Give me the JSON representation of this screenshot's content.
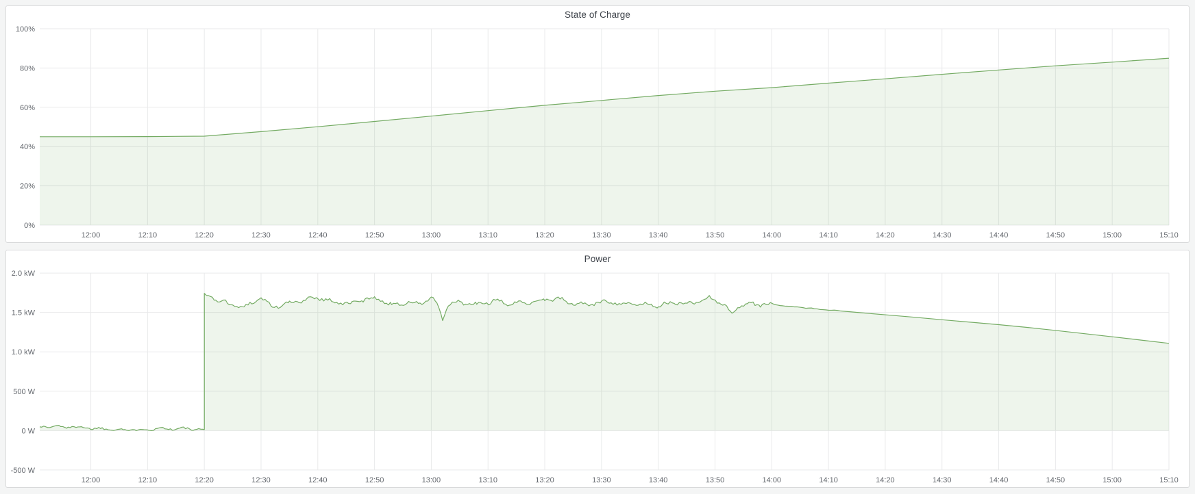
{
  "colors": {
    "page_background": "#f4f5f5",
    "panel_background": "#ffffff",
    "panel_border": "#d8d9da",
    "grid": "#e9eaeb",
    "axis_text": "#63676d",
    "title_text": "#3e434a",
    "series_green_line": "#74ab63",
    "series_green_fill": "rgba(116,171,99,0.12)"
  },
  "chart_data": [
    {
      "type": "area",
      "title": "State of Charge",
      "xlabel": "",
      "ylabel": "",
      "x_start": "11:51",
      "x_end": "15:10",
      "x_ticks": [
        "12:00",
        "12:10",
        "12:20",
        "12:30",
        "12:40",
        "12:50",
        "13:00",
        "13:10",
        "13:20",
        "13:30",
        "13:40",
        "13:50",
        "14:00",
        "14:10",
        "14:20",
        "14:30",
        "14:40",
        "14:50",
        "15:00",
        "15:10"
      ],
      "ylim": [
        0,
        100
      ],
      "y_ticks": [
        {
          "v": 0,
          "label": "0%"
        },
        {
          "v": 20,
          "label": "20%"
        },
        {
          "v": 40,
          "label": "40%"
        },
        {
          "v": 60,
          "label": "60%"
        },
        {
          "v": 80,
          "label": "80%"
        },
        {
          "v": 100,
          "label": "100%"
        }
      ],
      "grid": true,
      "legend": "none",
      "line_color": "#74ab63",
      "fill_color": "rgba(116,171,99,0.12)",
      "fill_to": 0,
      "series": [
        {
          "name": "State of Charge (%)",
          "points": [
            [
              "11:51",
              45.0
            ],
            [
              "12:00",
              45.0
            ],
            [
              "12:10",
              45.1
            ],
            [
              "12:20",
              45.3
            ],
            [
              "12:30",
              47.6
            ],
            [
              "12:40",
              50.1
            ],
            [
              "12:50",
              52.8
            ],
            [
              "13:00",
              55.5
            ],
            [
              "13:10",
              58.3
            ],
            [
              "13:20",
              61.0
            ],
            [
              "13:30",
              63.5
            ],
            [
              "13:40",
              66.0
            ],
            [
              "13:50",
              68.2
            ],
            [
              "14:00",
              70.0
            ],
            [
              "14:10",
              72.3
            ],
            [
              "14:20",
              74.5
            ],
            [
              "14:30",
              76.8
            ],
            [
              "14:40",
              79.0
            ],
            [
              "14:50",
              81.1
            ],
            [
              "15:00",
              83.0
            ],
            [
              "15:10",
              85.0
            ]
          ],
          "noise_segments": []
        }
      ]
    },
    {
      "type": "area",
      "title": "Power",
      "xlabel": "",
      "ylabel": "",
      "x_start": "11:51",
      "x_end": "15:10",
      "x_ticks": [
        "12:00",
        "12:10",
        "12:20",
        "12:30",
        "12:40",
        "12:50",
        "13:00",
        "13:10",
        "13:20",
        "13:30",
        "13:40",
        "13:50",
        "14:00",
        "14:10",
        "14:20",
        "14:30",
        "14:40",
        "14:50",
        "15:00",
        "15:10"
      ],
      "ylim": [
        -500,
        2000
      ],
      "y_ticks": [
        {
          "v": -500,
          "label": "-500 W"
        },
        {
          "v": 0,
          "label": "0 W"
        },
        {
          "v": 500,
          "label": "500 W"
        },
        {
          "v": 1000,
          "label": "1.0 kW"
        },
        {
          "v": 1500,
          "label": "1.5 kW"
        },
        {
          "v": 2000,
          "label": "2.0 kW"
        }
      ],
      "grid": true,
      "legend": "none",
      "line_color": "#74ab63",
      "fill_color": "rgba(116,171,99,0.12)",
      "fill_to": 0,
      "series": [
        {
          "name": "Power (W)",
          "points": [
            [
              "11:51",
              55
            ],
            [
              "11:52",
              62
            ],
            [
              "11:53",
              55
            ],
            [
              "11:54",
              58
            ],
            [
              "11:56",
              45
            ],
            [
              "11:58",
              38
            ],
            [
              "12:00",
              25
            ],
            [
              "12:02",
              18
            ],
            [
              "12:04",
              24
            ],
            [
              "12:06",
              14
            ],
            [
              "12:08",
              20
            ],
            [
              "12:10",
              16
            ],
            [
              "12:12",
              26
            ],
            [
              "12:14",
              14
            ],
            [
              "12:16",
              22
            ],
            [
              "12:18",
              14
            ],
            [
              "12:19",
              18
            ],
            [
              "12:20",
              8
            ],
            [
              "12:20",
              1740
            ],
            [
              "12:22",
              1680
            ],
            [
              "12:25",
              1600
            ],
            [
              "12:27",
              1560
            ],
            [
              "12:30",
              1680
            ],
            [
              "12:32",
              1560
            ],
            [
              "12:35",
              1620
            ],
            [
              "12:38",
              1680
            ],
            [
              "12:40",
              1700
            ],
            [
              "12:43",
              1620
            ],
            [
              "12:46",
              1600
            ],
            [
              "12:48",
              1660
            ],
            [
              "12:50",
              1690
            ],
            [
              "12:53",
              1610
            ],
            [
              "12:56",
              1630
            ],
            [
              "12:58",
              1600
            ],
            [
              "13:00",
              1680
            ],
            [
              "13:01",
              1600
            ],
            [
              "13:02",
              1390
            ],
            [
              "13:03",
              1600
            ],
            [
              "13:05",
              1630
            ],
            [
              "13:08",
              1610
            ],
            [
              "13:11",
              1650
            ],
            [
              "13:14",
              1600
            ],
            [
              "13:17",
              1620
            ],
            [
              "13:20",
              1660
            ],
            [
              "13:22",
              1690
            ],
            [
              "13:25",
              1620
            ],
            [
              "13:28",
              1600
            ],
            [
              "13:31",
              1630
            ],
            [
              "13:34",
              1600
            ],
            [
              "13:37",
              1615
            ],
            [
              "13:40",
              1600
            ],
            [
              "13:43",
              1620
            ],
            [
              "13:46",
              1605
            ],
            [
              "13:49",
              1680
            ],
            [
              "13:51",
              1640
            ],
            [
              "13:53",
              1490
            ],
            [
              "13:54",
              1590
            ],
            [
              "13:56",
              1620
            ],
            [
              "13:58",
              1600
            ],
            [
              "14:00",
              1600
            ],
            [
              "14:02",
              1582
            ],
            [
              "14:05",
              1565
            ],
            [
              "14:08",
              1545
            ],
            [
              "14:12",
              1520
            ],
            [
              "14:16",
              1495
            ],
            [
              "14:20",
              1470
            ],
            [
              "14:25",
              1440
            ],
            [
              "14:30",
              1408
            ],
            [
              "14:35",
              1376
            ],
            [
              "14:40",
              1345
            ],
            [
              "14:45",
              1310
            ],
            [
              "14:50",
              1272
            ],
            [
              "14:55",
              1232
            ],
            [
              "15:00",
              1192
            ],
            [
              "15:05",
              1150
            ],
            [
              "15:10",
              1108
            ]
          ],
          "noise_segments": [
            {
              "from": "11:51",
              "to": "12:20",
              "amp": 24,
              "step": 0.35
            },
            {
              "from": "12:20",
              "to": "14:00",
              "amp": 36,
              "step": 0.35
            },
            {
              "from": "14:00",
              "to": "14:10",
              "amp": 7,
              "step": 0.5
            }
          ]
        }
      ]
    }
  ]
}
